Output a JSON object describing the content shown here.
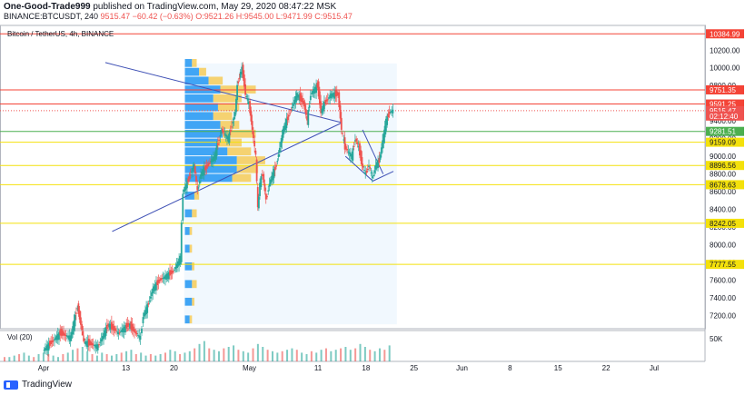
{
  "header": {
    "author": "One-Good-Trade999",
    "published": "published on TradingView.com, May 29, 2020 08:47:22 MSK",
    "symbol_line": "BINANCE:BTCUSDT, 240",
    "last": "9515.47",
    "change": "−60.42 (−0.63%)",
    "ohlc": "O:9521.26 H:9545.00 L:9471.99 C:9515.47"
  },
  "pane_title": "Bitcoin / TetherUS, 4h, BINANCE",
  "volume_label": "Vol (20)",
  "footer": {
    "brand": "TradingView"
  },
  "colors": {
    "up": "#26a69a",
    "down": "#ef5350",
    "resistance": "#f44336",
    "support_green": "#4caf50",
    "level_yellow": "#f4e10b",
    "pattern": "#3f51b5",
    "profile_blue": "#2196f3",
    "profile_yellow": "#f5c542"
  },
  "chart_data": {
    "type": "candlestick",
    "title": "Bitcoin / TetherUS, 4h, BINANCE",
    "ylim": [
      7050,
      10480
    ],
    "y_ticks": [
      7200,
      7400,
      7600,
      7800,
      8000,
      8200,
      8400,
      8600,
      8800,
      9000,
      9200,
      9400,
      9600,
      9800,
      10000,
      10200
    ],
    "x_ticks": [
      "Apr",
      "13",
      "20",
      "May",
      "11",
      "18",
      "25",
      "Jun",
      "8",
      "15",
      "22",
      "Jul"
    ],
    "price_labels": [
      {
        "value": 10384.99,
        "text": "10384.99",
        "color": "#f44336"
      },
      {
        "value": 9751.35,
        "text": "9751.35",
        "color": "#f44336"
      },
      {
        "value": 9591.25,
        "text": "9591.25",
        "color": "#f44336"
      },
      {
        "value": 9515.47,
        "text": "9515.47",
        "color": "#ef5350"
      },
      {
        "value": 9455,
        "text": "02:12:40",
        "color": "#ef5350"
      },
      {
        "value": 9281.51,
        "text": "9281.51",
        "color": "#4caf50"
      },
      {
        "value": 9159.09,
        "text": "9159.09",
        "color": "#f4e10b"
      },
      {
        "value": 8896.56,
        "text": "8896.56",
        "color": "#f4e10b"
      },
      {
        "value": 8678.63,
        "text": "8678.63",
        "color": "#f4e10b"
      },
      {
        "value": 8242.05,
        "text": "8242.05",
        "color": "#f4e10b"
      },
      {
        "value": 7777.55,
        "text": "7777.55",
        "color": "#f4e10b"
      }
    ],
    "horizontal_levels": [
      {
        "value": 10384.99,
        "color": "#f44336"
      },
      {
        "value": 9751.35,
        "color": "#f44336"
      },
      {
        "value": 9591.25,
        "color": "#f44336"
      },
      {
        "value": 9281.51,
        "color": "#4caf50"
      },
      {
        "value": 9159.09,
        "color": "#f4e10b"
      },
      {
        "value": 8896.56,
        "color": "#f4e10b"
      },
      {
        "value": 8678.63,
        "color": "#f4e10b"
      },
      {
        "value": 8242.05,
        "color": "#f4e10b"
      },
      {
        "value": 7777.55,
        "color": "#f4e10b"
      }
    ],
    "triangle": {
      "apex_day": 43.5,
      "apex_price": 9380,
      "upper_start": [
        9,
        10060
      ],
      "lower_start": [
        10,
        8150
      ]
    },
    "volume_axis_label": "50K",
    "profile": {
      "price_bins": [
        7100,
        7300,
        7500,
        7700,
        7900,
        8100,
        8300,
        8500,
        8700,
        8800,
        8900,
        9000,
        9100,
        9200,
        9300,
        9400,
        9500,
        9600,
        9700,
        9800,
        9900,
        10000
      ],
      "buy": [
        2,
        3,
        3,
        3,
        2,
        2,
        3,
        4,
        20,
        22,
        22,
        18,
        14,
        16,
        15,
        12,
        14,
        12,
        15,
        10,
        6,
        3
      ],
      "sell": [
        1,
        1,
        2,
        1,
        1,
        1,
        2,
        2,
        8,
        9,
        12,
        10,
        10,
        14,
        8,
        8,
        9,
        12,
        15,
        6,
        3,
        2
      ]
    },
    "series": [
      {
        "name": "BTCUSDT",
        "segments": [
          [
            0,
            6800
          ],
          [
            2.5,
            7000
          ],
          [
            4,
            6950
          ],
          [
            5,
            7300
          ],
          [
            6,
            6900
          ],
          [
            8,
            6850
          ],
          [
            9.5,
            7100
          ],
          [
            11,
            7000
          ],
          [
            12.5,
            7100
          ],
          [
            13.5,
            7000
          ],
          [
            14.2,
            6950
          ],
          [
            14.6,
            7200
          ],
          [
            15.2,
            7300
          ],
          [
            16,
            7500
          ],
          [
            17,
            7600
          ],
          [
            18,
            7650
          ],
          [
            19,
            7700
          ],
          [
            20,
            7850
          ],
          [
            20.4,
            8600
          ],
          [
            21,
            8700
          ],
          [
            22,
            8900
          ],
          [
            22.5,
            8600
          ],
          [
            23,
            8800
          ],
          [
            24,
            8900
          ],
          [
            25,
            9000
          ],
          [
            26,
            9300
          ],
          [
            27,
            9200
          ],
          [
            28,
            9500
          ],
          [
            28.3,
            9800
          ],
          [
            28.6,
            9900
          ],
          [
            29,
            10000
          ],
          [
            29.5,
            9700
          ],
          [
            30,
            9600
          ],
          [
            31,
            9000
          ],
          [
            31.3,
            8400
          ],
          [
            31.6,
            8700
          ],
          [
            32,
            8800
          ],
          [
            32.5,
            8500
          ],
          [
            33,
            8700
          ],
          [
            34,
            8900
          ],
          [
            35,
            9300
          ],
          [
            36,
            9500
          ],
          [
            37,
            9700
          ],
          [
            38,
            9600
          ],
          [
            38.5,
            9400
          ],
          [
            39,
            9700
          ],
          [
            40,
            9800
          ],
          [
            40.5,
            9500
          ],
          [
            41,
            9600
          ],
          [
            42,
            9700
          ],
          [
            43,
            9700
          ],
          [
            43.5,
            9300
          ],
          [
            44,
            9100
          ],
          [
            45,
            9000
          ],
          [
            45.5,
            9200
          ],
          [
            46,
            9100
          ],
          [
            46.5,
            8900
          ],
          [
            47,
            8800
          ],
          [
            47.5,
            8900
          ],
          [
            48,
            8750
          ],
          [
            48.5,
            8900
          ],
          [
            49,
            8950
          ],
          [
            50,
            9400
          ],
          [
            50.5,
            9500
          ],
          [
            51,
            9515
          ]
        ]
      }
    ],
    "volume": [
      3,
      3,
      4,
      5,
      6,
      4,
      3,
      5,
      6,
      5,
      4,
      3,
      5,
      6,
      8,
      9,
      10,
      7,
      5,
      4,
      6,
      5,
      4,
      5,
      6,
      7,
      8,
      5,
      6,
      4,
      5,
      4,
      5,
      6,
      8,
      7,
      5,
      6,
      7,
      9,
      12,
      14,
      9,
      8,
      7,
      9,
      10,
      11,
      8,
      7,
      6,
      9,
      12,
      10,
      8,
      7,
      6,
      7,
      8,
      9,
      8,
      6,
      5,
      7,
      6,
      8,
      9,
      7,
      8,
      9,
      10,
      8,
      9,
      12,
      10,
      8,
      7,
      9,
      8,
      11
    ]
  }
}
